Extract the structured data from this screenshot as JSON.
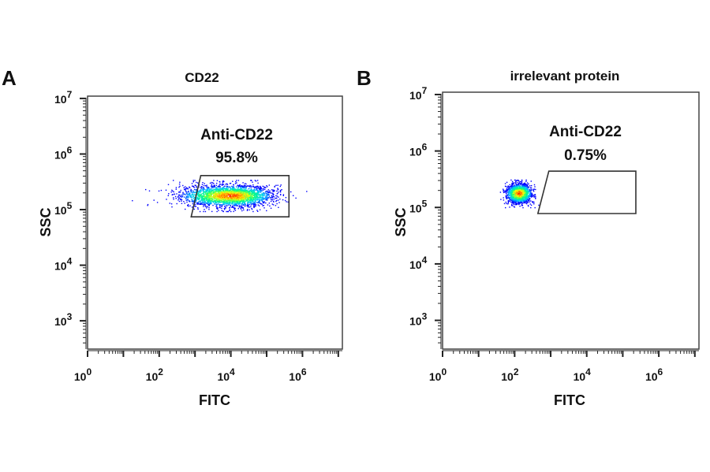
{
  "chart_data": [
    {
      "type": "scatter",
      "panel_label": "A",
      "title": "CD22",
      "xlabel": "FITC",
      "ylabel": "SSC",
      "x_scale": "log",
      "y_scale": "log",
      "xlim": [
        1,
        13000000
      ],
      "ylim": [
        310,
        11000000
      ],
      "x_ticks": [
        {
          "base": "10",
          "exp": "0",
          "value": 1
        },
        {
          "base": "10",
          "exp": "2",
          "value": 100
        },
        {
          "base": "10",
          "exp": "4",
          "value": 10000
        },
        {
          "base": "10",
          "exp": "6",
          "value": 1000000
        }
      ],
      "y_ticks": [
        {
          "base": "10",
          "exp": "3",
          "value": 1000
        },
        {
          "base": "10",
          "exp": "4",
          "value": 10000
        },
        {
          "base": "10",
          "exp": "5",
          "value": 100000
        },
        {
          "base": "10",
          "exp": "6",
          "value": 1000000
        },
        {
          "base": "10",
          "exp": "7",
          "value": 10000000
        }
      ],
      "grid": false,
      "gate": {
        "name": "Anti-CD22",
        "percent": "95.8%",
        "vertices": [
          [
            1450,
            410000
          ],
          [
            420000,
            410000
          ],
          [
            420000,
            74000
          ],
          [
            780,
            74000
          ]
        ]
      },
      "population": {
        "center_x": 10000,
        "center_y": 180000,
        "log_sd_x": 0.55,
        "log_sd_y": 0.1
      },
      "colormap": [
        "#0000ff",
        "#00c8ff",
        "#00ff80",
        "#ffff00",
        "#ff8000",
        "#ff0000"
      ]
    },
    {
      "type": "scatter",
      "panel_label": "B",
      "title": "irrelevant protein",
      "xlabel": "FITC",
      "ylabel": "SSC",
      "x_scale": "log",
      "y_scale": "log",
      "xlim": [
        1,
        13000000
      ],
      "ylim": [
        310,
        11000000
      ],
      "x_ticks": [
        {
          "base": "10",
          "exp": "0",
          "value": 1
        },
        {
          "base": "10",
          "exp": "2",
          "value": 100
        },
        {
          "base": "10",
          "exp": "4",
          "value": 10000
        },
        {
          "base": "10",
          "exp": "6",
          "value": 1000000
        }
      ],
      "y_ticks": [
        {
          "base": "10",
          "exp": "3",
          "value": 1000
        },
        {
          "base": "10",
          "exp": "4",
          "value": 10000
        },
        {
          "base": "10",
          "exp": "5",
          "value": 100000
        },
        {
          "base": "10",
          "exp": "6",
          "value": 1000000
        },
        {
          "base": "10",
          "exp": "7",
          "value": 10000000
        }
      ],
      "grid": false,
      "gate": {
        "name": "Anti-CD22",
        "percent": "0.75%",
        "vertices": [
          [
            890,
            440000
          ],
          [
            230000,
            440000
          ],
          [
            230000,
            78000
          ],
          [
            440,
            78000
          ]
        ]
      },
      "population": {
        "center_x": 130,
        "center_y": 180000,
        "log_sd_x": 0.17,
        "log_sd_y": 0.09
      },
      "colormap": [
        "#0000ff",
        "#00c8ff",
        "#00ff80",
        "#ffff00",
        "#ff8000",
        "#ff0000"
      ]
    }
  ]
}
